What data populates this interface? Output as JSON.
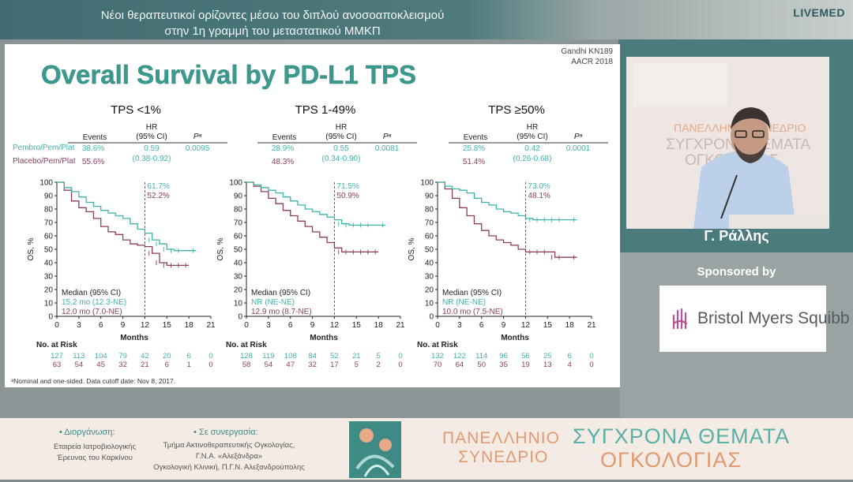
{
  "header": {
    "title_line1": "Νέοι θεραπευτικοί ορίζοντες μέσω του διπλού ανοσοαποκλεισμού",
    "title_line2": "στην 1η γραμμή του μεταστατικού ΜΜΚΠ",
    "brand": "LIVEMED"
  },
  "speaker": {
    "name": "Γ. Ράλλης"
  },
  "sponsor": {
    "label": "Sponsored by",
    "name": "Bristol Myers Squibb"
  },
  "footer": {
    "organizer_heading": "• Διοργάνωση:",
    "organizer_line1": "Εταιρεία Ιατροβιολογικής",
    "organizer_line2": "Έρευνας του Καρκίνου",
    "collab_heading": "• Σε συνεργασία:",
    "collab_line1": "Τμήμα Ακτινοθεραπευτικής Ογκολογίας,",
    "collab_line2": "Γ.Ν.Α. «Αλεξάνδρα»",
    "collab_line3": "Ογκολογική Κλινική, Π.Γ.Ν. Αλεξανδρούπολης",
    "conf_line1": "ΠΑΝΕΛΛΗΝΙΟ",
    "conf_line2": "ΣΥΝΕΔΡΙΟ",
    "conf_line3": "ΣΥΓΧΡΟΝΑ ΘΕΜΑΤΑ",
    "conf_line4": "ΟΓΚΟΛΟΓΙΑΣ"
  },
  "slide": {
    "title": "Overall Survival by PD-L1 TPS",
    "citation_line1": "Gandhi  KN189",
    "citation_line2": "AACR 2018",
    "footnote": "ᵃNominal  and one-sided.  Data cutoff date:  Nov 8, 2017.",
    "arm1_label": "Pembro/Pem/Plat",
    "arm2_label": "Placebo/Pem/Plat",
    "col_events": "Events",
    "col_hr_line1": "HR",
    "col_hr_line2": "(95%  CI)",
    "col_p": "Pᵃ",
    "y_axis_label": "OS, %",
    "x_axis_label": "Months",
    "at_risk_label": "No. at Risk",
    "median_label": "Median (95%  CI)"
  },
  "colors": {
    "pembro": "#3fb3a8",
    "placebo": "#8c3d5c",
    "title": "#3a9a8f"
  },
  "chart_data": [
    {
      "type": "line",
      "title": "TPS <1%",
      "xlabel": "Months",
      "ylabel": "OS, %",
      "xlim": [
        0,
        21
      ],
      "ylim": [
        0,
        100
      ],
      "x_ticks": [
        0,
        3,
        6,
        9,
        12,
        15,
        18,
        21
      ],
      "y_ticks": [
        0,
        10,
        20,
        30,
        40,
        50,
        60,
        70,
        80,
        90,
        100
      ],
      "pembro": {
        "events": "38.6%",
        "hr": "0.59",
        "ci": "(0.38-0.92)",
        "p": "0.0095",
        "landmark": "61.7%",
        "median": "15.2 mo (12.3-NE)",
        "x": [
          0,
          1,
          2,
          3,
          4,
          5,
          6,
          7,
          8,
          9,
          10,
          11,
          12,
          13,
          14,
          15,
          16,
          17,
          19
        ],
        "y": [
          100,
          96,
          93,
          89,
          85,
          82,
          79,
          77,
          75,
          73,
          69,
          65,
          62,
          57,
          54,
          50,
          49,
          49,
          49
        ]
      },
      "placebo": {
        "events": "55.6%",
        "landmark": "52.2%",
        "median": "12.0 mo (7.0-NE)",
        "x": [
          0,
          1,
          2,
          3,
          4,
          5,
          6,
          7,
          8,
          9,
          10,
          11,
          12,
          13,
          14,
          15,
          16,
          17,
          18
        ],
        "y": [
          100,
          94,
          86,
          81,
          78,
          73,
          67,
          63,
          61,
          57,
          54,
          53,
          52,
          47,
          40,
          38,
          38,
          38,
          38
        ]
      },
      "at_risk_pembro": [
        "127",
        "113",
        "104",
        "79",
        "42",
        "20",
        "6",
        "0"
      ],
      "at_risk_placebo": [
        "63",
        "54",
        "45",
        "32",
        "21",
        "6",
        "1",
        "0"
      ]
    },
    {
      "type": "line",
      "title": "TPS 1-49%",
      "xlabel": "Months",
      "ylabel": "OS, %",
      "xlim": [
        0,
        21
      ],
      "ylim": [
        0,
        100
      ],
      "x_ticks": [
        0,
        3,
        6,
        9,
        12,
        15,
        18,
        21
      ],
      "y_ticks": [
        0,
        10,
        20,
        30,
        40,
        50,
        60,
        70,
        80,
        90,
        100
      ],
      "pembro": {
        "events": "28.9%",
        "hr": "0.55",
        "ci": "(0.34-0.90)",
        "p": "0.0081",
        "landmark": "71.5%",
        "median": "NR (NE-NE)",
        "x": [
          0,
          1,
          2,
          3,
          4,
          5,
          6,
          7,
          8,
          9,
          10,
          11,
          12,
          13,
          14,
          15,
          16,
          17,
          19
        ],
        "y": [
          100,
          98,
          96,
          94,
          92,
          89,
          86,
          83,
          80,
          78,
          76,
          74,
          72,
          69,
          68,
          68,
          68,
          68,
          68
        ]
      },
      "placebo": {
        "events": "48.3%",
        "landmark": "50.9%",
        "median": "12.9 mo (8.7-NE)",
        "x": [
          0,
          1,
          2,
          3,
          4,
          5,
          6,
          7,
          8,
          9,
          10,
          11,
          12,
          13,
          14,
          15,
          16,
          17,
          18
        ],
        "y": [
          100,
          97,
          93,
          88,
          84,
          79,
          75,
          71,
          67,
          63,
          59,
          55,
          51,
          48,
          48,
          48,
          48,
          48,
          48
        ]
      },
      "at_risk_pembro": [
        "128",
        "119",
        "108",
        "84",
        "52",
        "21",
        "5",
        "0"
      ],
      "at_risk_placebo": [
        "58",
        "54",
        "47",
        "32",
        "17",
        "5",
        "2",
        "0"
      ]
    },
    {
      "type": "line",
      "title": "TPS ≥50%",
      "xlabel": "Months",
      "ylabel": "OS, %",
      "xlim": [
        0,
        21
      ],
      "ylim": [
        0,
        100
      ],
      "x_ticks": [
        0,
        3,
        6,
        9,
        12,
        15,
        18,
        21
      ],
      "y_ticks": [
        0,
        10,
        20,
        30,
        40,
        50,
        60,
        70,
        80,
        90,
        100
      ],
      "pembro": {
        "events": "25.8%",
        "hr": "0.42",
        "ci": "(0.26-0.68)",
        "p": "0.0001",
        "landmark": "73.0%",
        "median": "NR (NE-NE)",
        "x": [
          0,
          1,
          2,
          3,
          4,
          5,
          6,
          7,
          8,
          9,
          10,
          11,
          12,
          13,
          14,
          15,
          16,
          17,
          19
        ],
        "y": [
          100,
          97,
          95,
          94,
          92,
          88,
          85,
          83,
          80,
          78,
          77,
          75,
          73,
          72,
          72,
          72,
          72,
          72,
          72
        ]
      },
      "placebo": {
        "events": "51.4%",
        "landmark": "48.1%",
        "median": "10.0 mo (7.5-NE)",
        "x": [
          0,
          1,
          2,
          3,
          4,
          5,
          6,
          7,
          8,
          9,
          10,
          11,
          12,
          13,
          14,
          15,
          16,
          17,
          19
        ],
        "y": [
          100,
          95,
          88,
          81,
          75,
          69,
          64,
          60,
          57,
          55,
          53,
          50,
          48,
          48,
          48,
          48,
          44,
          44,
          44
        ]
      },
      "at_risk_pembro": [
        "132",
        "122",
        "114",
        "96",
        "56",
        "25",
        "6",
        "0"
      ],
      "at_risk_placebo": [
        "70",
        "64",
        "50",
        "35",
        "19",
        "13",
        "4",
        "0"
      ]
    }
  ]
}
